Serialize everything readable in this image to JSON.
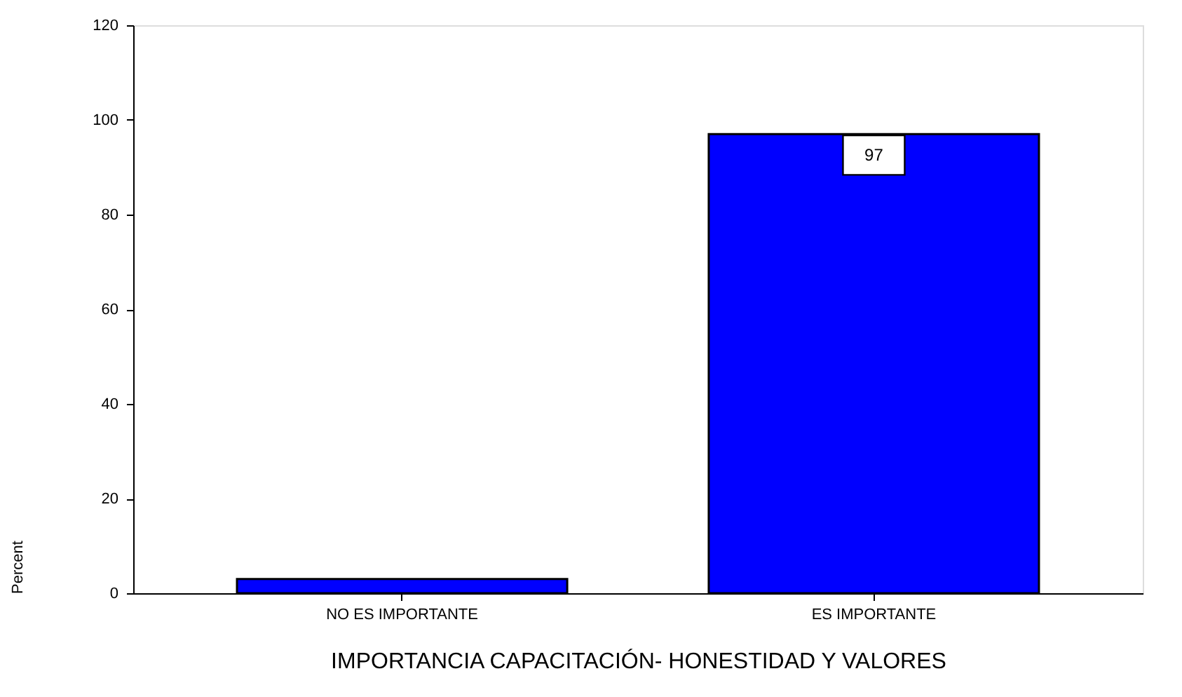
{
  "chart_data": {
    "type": "bar",
    "categories": [
      "NO ES IMPORTANTE",
      "ES IMPORTANTE"
    ],
    "values": [
      3,
      97
    ],
    "color": "#0000ff",
    "value_labels": [
      null,
      "97"
    ],
    "xlabel": "IMPORTANCIA CAPACITACIÓN- HONESTIDAD Y VALORES",
    "ylabel": "Percent",
    "ylim": [
      0,
      120
    ],
    "yticks": [
      0,
      20,
      40,
      60,
      80,
      100,
      120
    ]
  }
}
